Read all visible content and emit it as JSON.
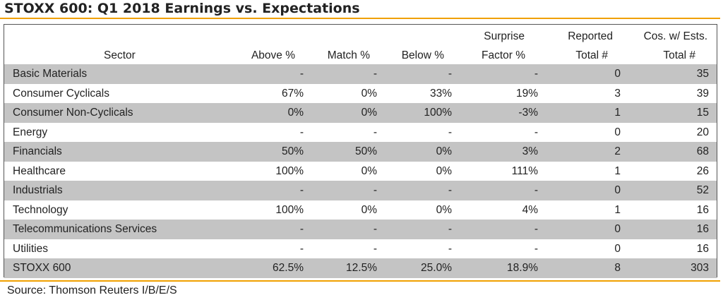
{
  "title": "STOXX 600: Q1 2018 Earnings vs. Expectations",
  "columns": {
    "sector": "Sector",
    "above": "Above %",
    "match": "Match %",
    "below": "Below %",
    "surprise_top": "Surprise",
    "surprise_bottom": "Factor %",
    "reported_top": "Reported",
    "reported_bottom": "Total #",
    "cos_top": "Cos. w/ Ests.",
    "cos_bottom": "Total #"
  },
  "rows": [
    {
      "sector": "Basic Materials",
      "above": "-",
      "match": "-",
      "below": "-",
      "surprise": "-",
      "reported": "0",
      "cos": "35"
    },
    {
      "sector": "Consumer Cyclicals",
      "above": "67%",
      "match": "0%",
      "below": "33%",
      "surprise": "19%",
      "reported": "3",
      "cos": "39"
    },
    {
      "sector": "Consumer Non-Cyclicals",
      "above": "0%",
      "match": "0%",
      "below": "100%",
      "surprise": "-3%",
      "reported": "1",
      "cos": "15"
    },
    {
      "sector": "Energy",
      "above": "-",
      "match": "-",
      "below": "-",
      "surprise": "-",
      "reported": "0",
      "cos": "20"
    },
    {
      "sector": "Financials",
      "above": "50%",
      "match": "50%",
      "below": "0%",
      "surprise": "3%",
      "reported": "2",
      "cos": "68"
    },
    {
      "sector": "Healthcare",
      "above": "100%",
      "match": "0%",
      "below": "0%",
      "surprise": "111%",
      "reported": "1",
      "cos": "26"
    },
    {
      "sector": "Industrials",
      "above": "-",
      "match": "-",
      "below": "-",
      "surprise": "-",
      "reported": "0",
      "cos": "52"
    },
    {
      "sector": "Technology",
      "above": "100%",
      "match": "0%",
      "below": "0%",
      "surprise": "4%",
      "reported": "1",
      "cos": "16"
    },
    {
      "sector": "Telecommunications Services",
      "above": "-",
      "match": "-",
      "below": "-",
      "surprise": "-",
      "reported": "0",
      "cos": "16"
    },
    {
      "sector": "Utilities",
      "above": "-",
      "match": "-",
      "below": "-",
      "surprise": "-",
      "reported": "0",
      "cos": "16"
    },
    {
      "sector": "STOXX 600",
      "above": "62.5%",
      "match": "12.5%",
      "below": "25.0%",
      "surprise": "18.9%",
      "reported": "8",
      "cos": "303"
    }
  ],
  "source": "Source: Thomson Reuters I/B/E/S",
  "colors": {
    "accent_rule": "#f0a000",
    "shaded_row": "#c4c4c4"
  }
}
